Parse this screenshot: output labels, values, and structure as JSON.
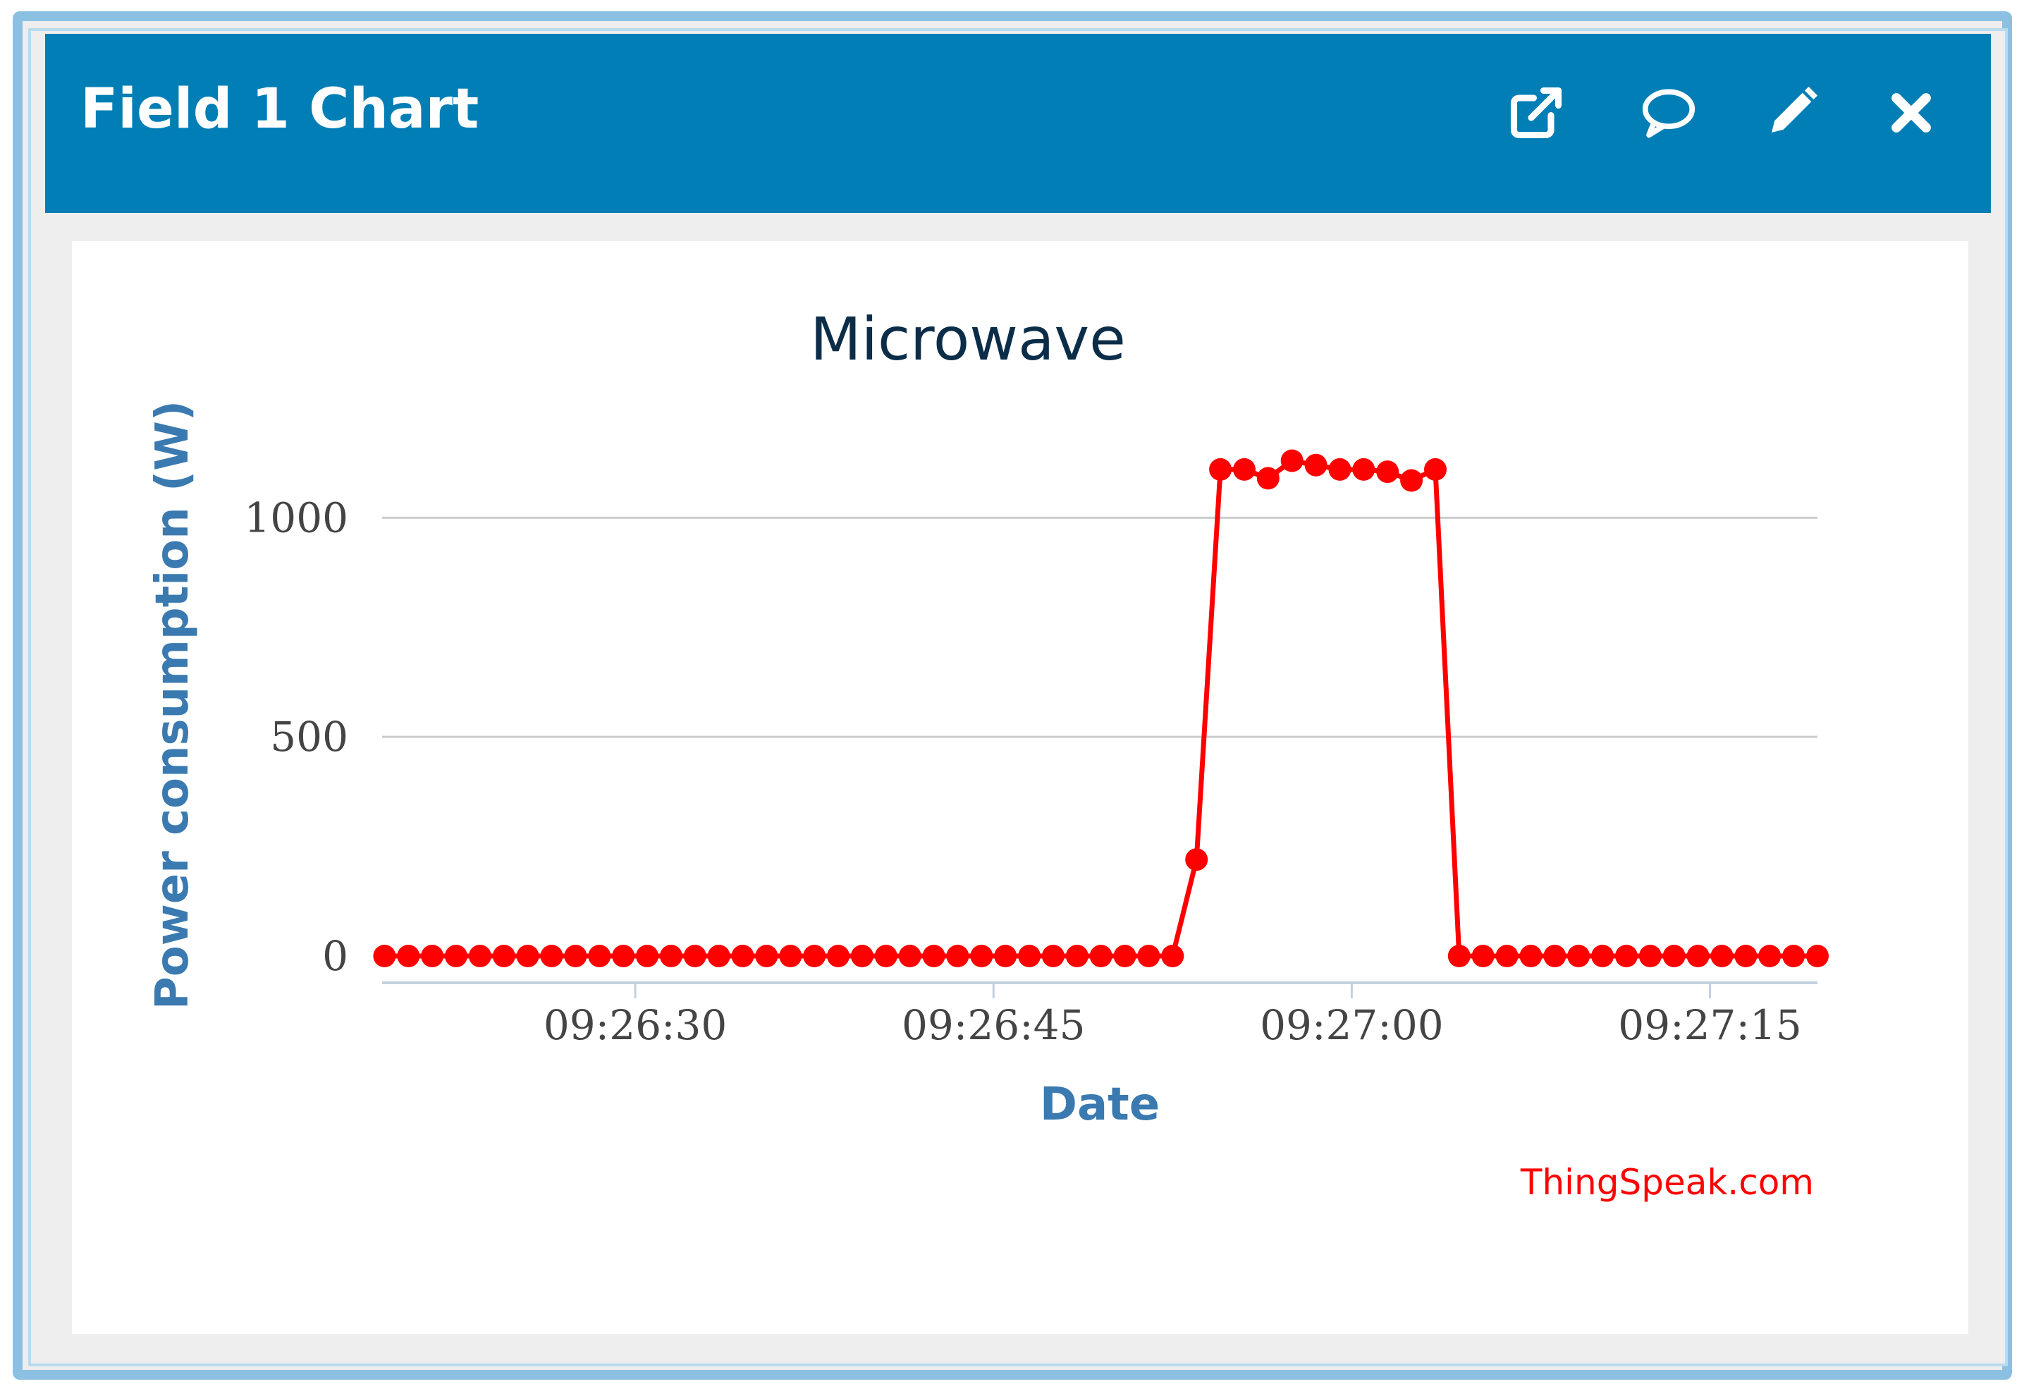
{
  "header": {
    "title": "Field 1 Chart",
    "icons": [
      "external-link-icon",
      "comment-icon",
      "pencil-icon",
      "close-icon"
    ]
  },
  "colors": {
    "header_bg": "#017eb5",
    "frame_border": "#8cc0e2",
    "series": "#ff0000",
    "axis_label": "#3a7ab0",
    "credit": "#ff0000"
  },
  "chart_data": {
    "type": "line",
    "title": "Microwave",
    "xlabel": "Date",
    "ylabel": "Power consumption (W)",
    "ylim": [
      0,
      1200
    ],
    "yticks": [
      0,
      500,
      1000
    ],
    "xticks": [
      "09:26:30",
      "09:26:45",
      "09:27:00",
      "09:27:15"
    ],
    "xlim": [
      "09:26:19.4",
      "09:27:19.5"
    ],
    "grid": true,
    "legend": "none",
    "series": [
      {
        "x": [
          "09:26:19.5",
          "09:26:20.5",
          "09:26:21.5",
          "09:26:22.5",
          "09:26:23.5",
          "09:26:24.5",
          "09:26:25.5",
          "09:26:26.5",
          "09:26:27.5",
          "09:26:28.5",
          "09:26:29.5",
          "09:26:30.5",
          "09:26:31.5",
          "09:26:32.5",
          "09:26:33.5",
          "09:26:34.5",
          "09:26:35.5",
          "09:26:36.5",
          "09:26:37.5",
          "09:26:38.5",
          "09:26:39.5",
          "09:26:40.5",
          "09:26:41.5",
          "09:26:42.5",
          "09:26:43.5",
          "09:26:44.5",
          "09:26:45.5",
          "09:26:46.5",
          "09:26:47.5",
          "09:26:48.5",
          "09:26:49.5",
          "09:26:50.5",
          "09:26:51.5",
          "09:26:52.5",
          "09:26:53.5",
          "09:26:54.5",
          "09:26:55.5",
          "09:26:56.5",
          "09:26:57.5",
          "09:26:58.5",
          "09:26:59.5",
          "09:27:00.5",
          "09:27:01.5",
          "09:27:02.5",
          "09:27:03.5",
          "09:27:04.5",
          "09:27:05.5",
          "09:27:06.5",
          "09:27:07.5",
          "09:27:08.5",
          "09:27:09.5",
          "09:27:10.5",
          "09:27:11.5",
          "09:27:12.5",
          "09:27:13.5",
          "09:27:14.5",
          "09:27:15.5",
          "09:27:16.5",
          "09:27:17.5",
          "09:27:18.5",
          "09:27:19.5"
        ],
        "values": [
          0,
          0,
          0,
          0,
          0,
          0,
          0,
          0,
          0,
          0,
          0,
          0,
          0,
          0,
          0,
          0,
          0,
          0,
          0,
          0,
          0,
          0,
          0,
          0,
          0,
          0,
          0,
          0,
          0,
          0,
          0,
          0,
          0,
          0,
          220,
          1110,
          1110,
          1090,
          1130,
          1120,
          1110,
          1110,
          1105,
          1085,
          1110,
          0,
          0,
          0,
          0,
          0,
          0,
          0,
          0,
          0,
          0,
          0,
          0,
          0,
          0,
          0,
          0
        ]
      }
    ],
    "annotation": "ThingSpeak.com"
  }
}
